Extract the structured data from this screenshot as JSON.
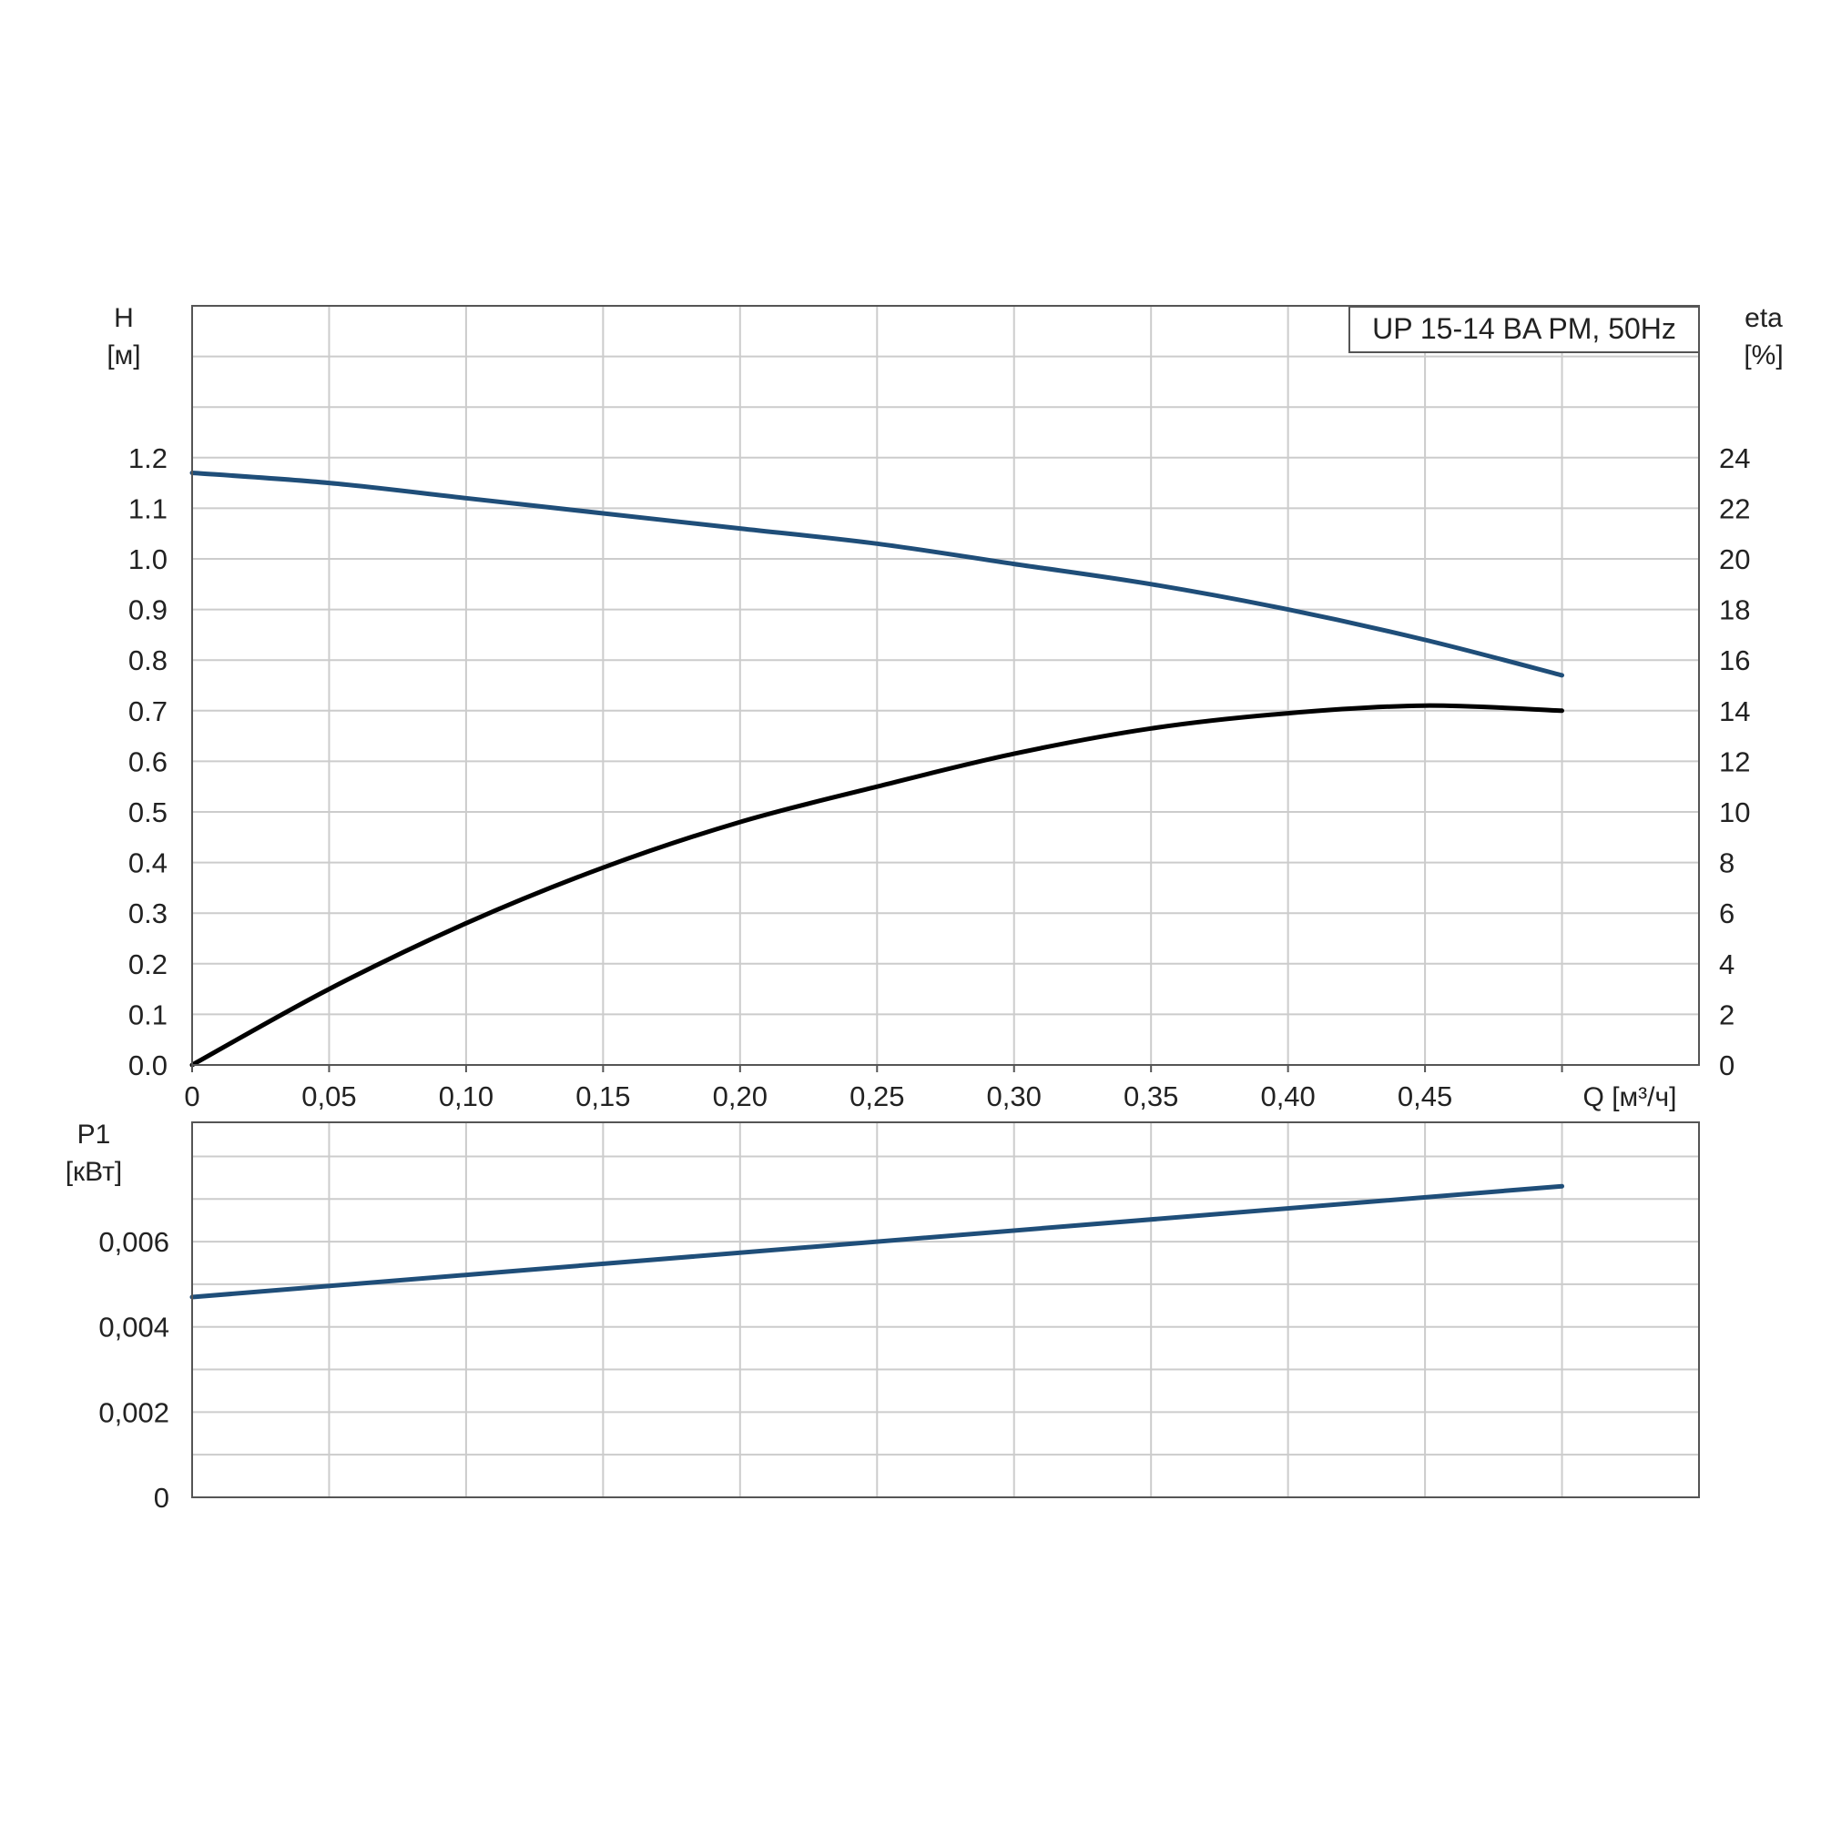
{
  "chart_data": [
    {
      "type": "line",
      "panel": "head-efficiency",
      "legend": "UP 15-14 BA PM, 50Hz",
      "legend_placement": "top-right",
      "grid": true,
      "xlabel": "Q [м³/ч]",
      "ylabel": "H",
      "ylabel_unit": "[м]",
      "y2label": "eta",
      "y2label_unit": "[%]",
      "xlim": [
        0,
        0.55
      ],
      "ylim": [
        0,
        1.5
      ],
      "y2lim": [
        0,
        30
      ],
      "x_ticks": [
        "0",
        "0,05",
        "0,10",
        "0,15",
        "0,20",
        "0,25",
        "0,30",
        "0,35",
        "0,40",
        "0,45"
      ],
      "x_tick_values": [
        0,
        0.05,
        0.1,
        0.15,
        0.2,
        0.25,
        0.3,
        0.35,
        0.4,
        0.45
      ],
      "y_ticks": [
        "0.0",
        "0.1",
        "0.2",
        "0.3",
        "0.4",
        "0.5",
        "0.6",
        "0.7",
        "0.8",
        "0.9",
        "1.0",
        "1.1",
        "1.2"
      ],
      "y_tick_values": [
        0,
        0.1,
        0.2,
        0.3,
        0.4,
        0.5,
        0.6,
        0.7,
        0.8,
        0.9,
        1.0,
        1.1,
        1.2
      ],
      "y2_ticks": [
        "0",
        "2",
        "4",
        "6",
        "8",
        "10",
        "12",
        "14",
        "16",
        "18",
        "20",
        "22",
        "24"
      ],
      "y2_tick_values": [
        0,
        2,
        4,
        6,
        8,
        10,
        12,
        14,
        16,
        18,
        20,
        22,
        24
      ],
      "series": [
        {
          "axis": "left",
          "color": "#1f4e79",
          "x": [
            0,
            0.05,
            0.1,
            0.15,
            0.2,
            0.25,
            0.3,
            0.35,
            0.4,
            0.45,
            0.5
          ],
          "y": [
            1.17,
            1.15,
            1.12,
            1.09,
            1.06,
            1.03,
            0.99,
            0.95,
            0.9,
            0.84,
            0.77
          ]
        },
        {
          "axis": "right",
          "color": "#000000",
          "x": [
            0,
            0.05,
            0.1,
            0.15,
            0.2,
            0.25,
            0.3,
            0.35,
            0.4,
            0.45,
            0.5
          ],
          "y": [
            0,
            3.0,
            5.6,
            7.8,
            9.6,
            11.0,
            12.3,
            13.3,
            13.9,
            14.2,
            14.0
          ]
        }
      ]
    },
    {
      "type": "line",
      "panel": "power",
      "grid": true,
      "ylabel": "P1",
      "ylabel_unit": "[кВт]",
      "xlim": [
        0,
        0.55
      ],
      "ylim": [
        0,
        0.0088
      ],
      "x_tick_values": [
        0,
        0.05,
        0.1,
        0.15,
        0.2,
        0.25,
        0.3,
        0.35,
        0.4,
        0.45
      ],
      "y_ticks": [
        "0",
        "0,002",
        "0,004",
        "0,006"
      ],
      "y_tick_values": [
        0,
        0.002,
        0.004,
        0.006
      ],
      "series": [
        {
          "axis": "left",
          "color": "#1f4e79",
          "x": [
            0,
            0.5
          ],
          "y": [
            0.0047,
            0.0073
          ]
        }
      ]
    }
  ]
}
